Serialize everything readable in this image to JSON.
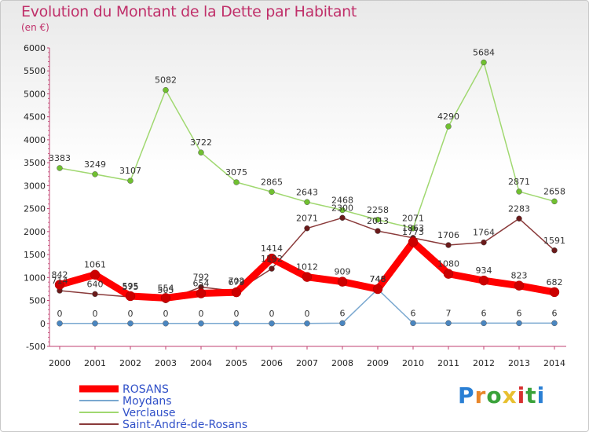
{
  "chart_data": {
    "type": "line",
    "title": "Evolution du Montant de la Dette par Habitant",
    "subtitle": "(en €)",
    "xlabel": "",
    "ylabel": "",
    "ylim": [
      -500,
      6000
    ],
    "yticks": [
      -500,
      0,
      500,
      1000,
      1500,
      2000,
      2500,
      3000,
      3500,
      4000,
      4500,
      5000,
      5500,
      6000
    ],
    "categories": [
      "2000",
      "2001",
      "2002",
      "2003",
      "2004",
      "2005",
      "2006",
      "2007",
      "2008",
      "2009",
      "2010",
      "2011",
      "2012",
      "2013",
      "2014"
    ],
    "grid": false,
    "legend_position": "bottom-left",
    "series": [
      {
        "name": "ROSANS",
        "color": "#ff0000",
        "marker": "#cc0000",
        "width": 9,
        "values": [
          842,
          1061,
          595,
          554,
          654,
          679,
          1414,
          1012,
          909,
          748,
          1773,
          1080,
          934,
          823,
          682
        ]
      },
      {
        "name": "Moydans",
        "color": "#7aa8d0",
        "marker": "#4a86c0",
        "width": 1.5,
        "values": [
          0,
          0,
          0,
          0,
          0,
          0,
          0,
          0,
          6,
          746,
          6,
          7,
          6,
          6,
          6
        ]
      },
      {
        "name": "Verclause",
        "color": "#a0d870",
        "marker": "#70c030",
        "width": 1.5,
        "values": [
          3383,
          3249,
          3107,
          5082,
          3722,
          3075,
          2865,
          2643,
          2468,
          2258,
          2071,
          4290,
          5684,
          2871,
          2658
        ]
      },
      {
        "name": "Saint-André-de-Rosans",
        "color": "#8a3a3a",
        "marker": "#6a1a1a",
        "width": 1.5,
        "values": [
          714,
          640,
          575,
          505,
          792,
          702,
          1192,
          2071,
          2300,
          2013,
          1863,
          1706,
          1764,
          2283,
          1591
        ]
      }
    ]
  },
  "logo": {
    "letters": [
      "P",
      "r",
      "o",
      "x",
      "i",
      "t",
      "i"
    ]
  }
}
